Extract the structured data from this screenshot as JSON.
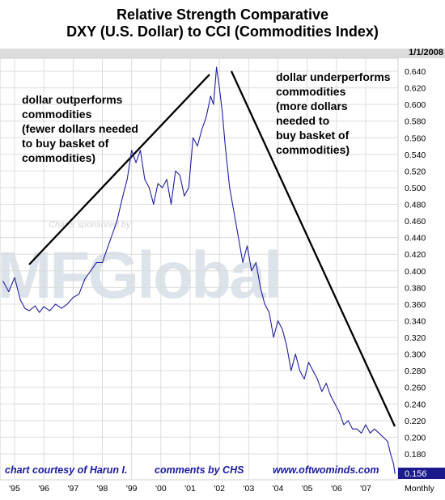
{
  "title": {
    "line1": "Relative Strength Comparative",
    "line2": "DXY (U.S. Dollar) to CCI (Commodities Index)"
  },
  "date_label": "1/1/2008",
  "annotations": {
    "left": [
      "dollar outperforms",
      "commodities",
      "(fewer dollars needed",
      "to buy basket of",
      "commodities)"
    ],
    "right": [
      "dollar underperforms",
      "commodities",
      "(more dollars",
      "needed to",
      "buy basket of",
      "commodities)"
    ]
  },
  "credits": {
    "courtesy": "chart courtesy of Harun I.",
    "comments": "comments by CHS",
    "website": "www.oftwominds.com"
  },
  "watermark": {
    "sponsor_text": "Charts sponsored by:",
    "logo_text": "MFGlobal"
  },
  "colors": {
    "series": "#1f1f9e",
    "grid": "#dcdcdc",
    "last_value_box": "#1a1a8c",
    "credit_text": "#1a1aa0"
  },
  "chart_data": {
    "type": "line",
    "period": "Monthly",
    "x_ticks": [
      "'95",
      "'96",
      "'97",
      "'98",
      "'99",
      "'00",
      "'01",
      "'02",
      "'03",
      "'04",
      "'05",
      "'06",
      "'07"
    ],
    "y_ticks": [
      "0.640",
      "0.620",
      "0.600",
      "0.580",
      "0.560",
      "0.540",
      "0.520",
      "0.500",
      "0.480",
      "0.460",
      "0.440",
      "0.420",
      "0.400",
      "0.380",
      "0.360",
      "0.340",
      "0.320",
      "0.300",
      "0.280",
      "0.260",
      "0.240",
      "0.220",
      "0.200",
      "0.180"
    ],
    "ylim": [
      0.148,
      0.652
    ],
    "xlim": [
      1994.55,
      2008.1
    ],
    "last_value": "0.156",
    "grid": true,
    "series": [
      {
        "x": [
          1994.6,
          1994.8,
          1995.0,
          1995.2,
          1995.35,
          1995.5,
          1995.7,
          1995.85,
          1996.0,
          1996.2,
          1996.4,
          1996.6,
          1996.8,
          1997.0,
          1997.2,
          1997.4,
          1997.6,
          1997.8,
          1998.0,
          1998.2,
          1998.35,
          1998.5,
          1998.7,
          1998.85,
          1999.0,
          1999.15,
          1999.3,
          1999.45,
          1999.6,
          1999.75,
          1999.9,
          2000.05,
          2000.2,
          2000.35,
          2000.5,
          2000.65,
          2000.8,
          2000.95,
          2001.1,
          2001.25,
          2001.4,
          2001.55,
          2001.7,
          2001.8,
          2001.9,
          2002.0,
          2002.1,
          2002.2,
          2002.35,
          2002.5,
          2002.65,
          2002.8,
          2002.95,
          2003.1,
          2003.25,
          2003.4,
          2003.55,
          2003.7,
          2003.85,
          2004.0,
          2004.15,
          2004.3,
          2004.45,
          2004.6,
          2004.75,
          2004.9,
          2005.05,
          2005.2,
          2005.35,
          2005.5,
          2005.65,
          2005.8,
          2005.95,
          2006.1,
          2006.25,
          2006.4,
          2006.55,
          2006.7,
          2006.85,
          2007.0,
          2007.15,
          2007.3,
          2007.45,
          2007.6,
          2007.75,
          2007.85,
          2007.95,
          2008.0
        ],
        "y": [
          0.388,
          0.375,
          0.392,
          0.365,
          0.355,
          0.352,
          0.358,
          0.35,
          0.357,
          0.352,
          0.36,
          0.355,
          0.36,
          0.368,
          0.372,
          0.39,
          0.4,
          0.41,
          0.41,
          0.43,
          0.445,
          0.46,
          0.49,
          0.51,
          0.545,
          0.53,
          0.545,
          0.51,
          0.5,
          0.48,
          0.505,
          0.5,
          0.51,
          0.48,
          0.52,
          0.515,
          0.49,
          0.5,
          0.56,
          0.55,
          0.57,
          0.585,
          0.61,
          0.6,
          0.645,
          0.62,
          0.59,
          0.55,
          0.5,
          0.47,
          0.44,
          0.41,
          0.43,
          0.4,
          0.41,
          0.38,
          0.36,
          0.35,
          0.32,
          0.34,
          0.33,
          0.31,
          0.28,
          0.3,
          0.28,
          0.27,
          0.29,
          0.28,
          0.27,
          0.255,
          0.265,
          0.25,
          0.24,
          0.23,
          0.215,
          0.22,
          0.21,
          0.21,
          0.205,
          0.215,
          0.205,
          0.21,
          0.205,
          0.2,
          0.195,
          0.18,
          0.168,
          0.156
        ]
      }
    ]
  }
}
